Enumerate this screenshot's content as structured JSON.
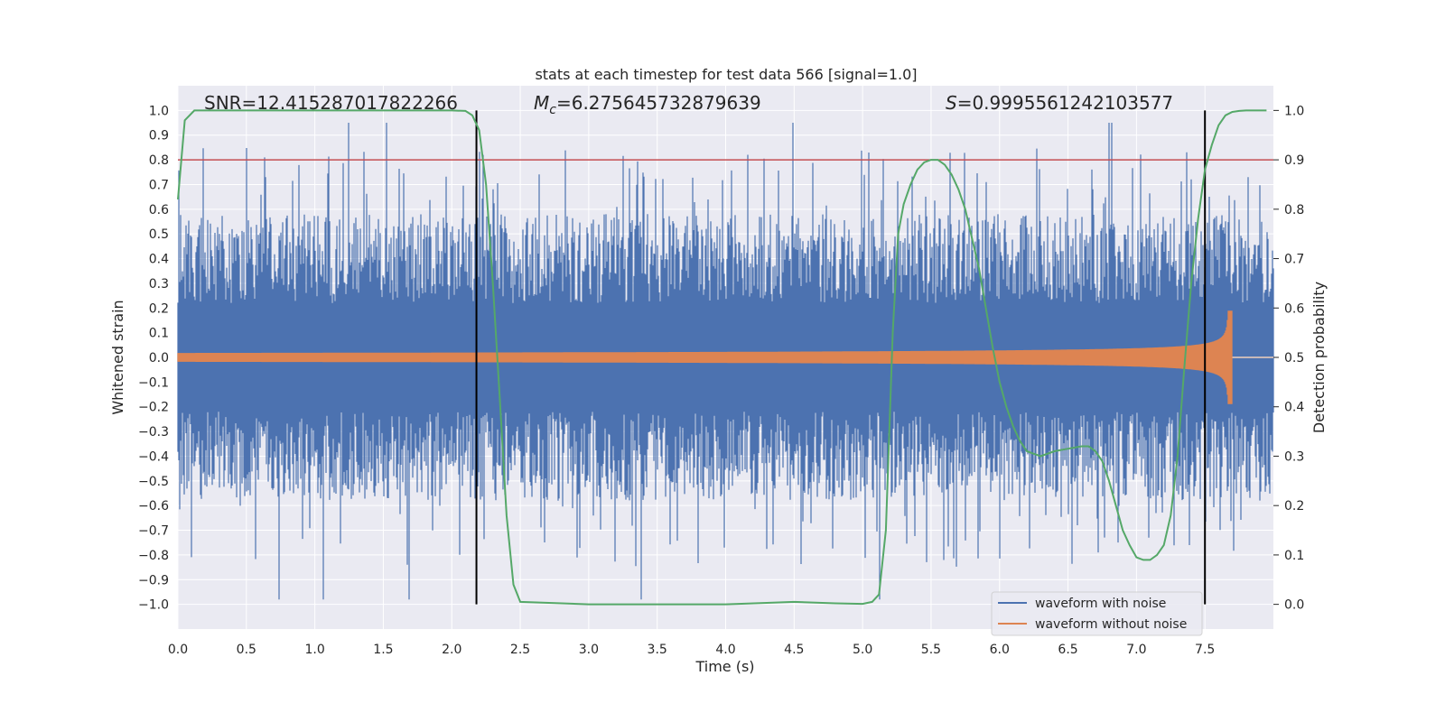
{
  "chart_data": {
    "type": "line",
    "title": "stats at each timestep for test data 566 [signal=1.0]",
    "xlabel": "Time (s)",
    "ylabel_left": "Whitened strain",
    "ylabel_right": "Detection probability",
    "xlim": [
      0.0,
      8.0
    ],
    "ylim_left": [
      -1.1,
      1.1
    ],
    "ylim_right": [
      -0.05,
      1.05
    ],
    "xticks": [
      "0.0",
      "0.5",
      "1.0",
      "1.5",
      "2.0",
      "2.5",
      "3.0",
      "3.5",
      "4.0",
      "4.5",
      "5.0",
      "5.5",
      "6.0",
      "6.5",
      "7.0",
      "7.5"
    ],
    "xtick_values": [
      0,
      0.5,
      1,
      1.5,
      2,
      2.5,
      3,
      3.5,
      4,
      4.5,
      5,
      5.5,
      6,
      6.5,
      7,
      7.5
    ],
    "yticks_left": [
      "1.0",
      "0.9",
      "0.8",
      "0.7",
      "0.6",
      "0.5",
      "0.4",
      "0.3",
      "0.2",
      "0.1",
      "0.0",
      "−0.1",
      "−0.2",
      "−0.3",
      "−0.4",
      "−0.5",
      "−0.6",
      "−0.7",
      "−0.8",
      "−0.9",
      "−1.0"
    ],
    "yticks_left_values": [
      1.0,
      0.9,
      0.8,
      0.7,
      0.6,
      0.5,
      0.4,
      0.3,
      0.2,
      0.1,
      0.0,
      -0.1,
      -0.2,
      -0.3,
      -0.4,
      -0.5,
      -0.6,
      -0.7,
      -0.8,
      -0.9,
      -1.0
    ],
    "yticks_right": [
      "1.0",
      "0.9",
      "0.8",
      "0.7",
      "0.6",
      "0.5",
      "0.4",
      "0.3",
      "0.2",
      "0.1",
      "0.0"
    ],
    "yticks_right_values": [
      1.0,
      0.9,
      0.8,
      0.7,
      0.6,
      0.5,
      0.4,
      0.3,
      0.2,
      0.1,
      0.0
    ],
    "annotations": {
      "snr": "SNR=12.415287017822266",
      "mc_symbol": "M",
      "mc_sub": "c",
      "mc_value": "=6.275645732879639",
      "s_symbol": "S",
      "s_value": "=0.9995561242103577"
    },
    "threshold_line": {
      "y": 0.8,
      "color": "#c44e52"
    },
    "vertical_markers": [
      2.18,
      7.5
    ],
    "noise_envelope": {
      "description": "waveform with noise spans roughly ±0.2 to ±0.6 with spikes up to ±1.0",
      "typical_amplitude": 0.5,
      "max_spike": 1.0
    },
    "clean_chirp": {
      "start_amplitude": 0.02,
      "peak_time": 7.67,
      "peak_amplitude": 0.3,
      "end_time": 7.7
    },
    "detection_probability": {
      "x": [
        0.0,
        0.05,
        0.12,
        0.2,
        0.5,
        1.0,
        1.5,
        2.0,
        2.1,
        2.15,
        2.2,
        2.25,
        2.3,
        2.35,
        2.4,
        2.45,
        2.5,
        3.0,
        3.5,
        4.0,
        4.3,
        4.5,
        4.8,
        5.0,
        5.07,
        5.12,
        5.17,
        5.22,
        5.26,
        5.3,
        5.35,
        5.4,
        5.45,
        5.5,
        5.55,
        5.6,
        5.65,
        5.7,
        5.75,
        5.8,
        5.85,
        5.9,
        5.95,
        6.0,
        6.05,
        6.1,
        6.15,
        6.2,
        6.3,
        6.4,
        6.5,
        6.6,
        6.65,
        6.7,
        6.75,
        6.8,
        6.85,
        6.9,
        6.95,
        7.0,
        7.05,
        7.1,
        7.15,
        7.2,
        7.25,
        7.3,
        7.35,
        7.4,
        7.45,
        7.5,
        7.55,
        7.6,
        7.65,
        7.7,
        7.75,
        7.8,
        7.85,
        7.9,
        7.95
      ],
      "y": [
        0.82,
        0.98,
        1.0,
        1.0,
        1.0,
        1.0,
        1.0,
        1.0,
        0.999,
        0.99,
        0.96,
        0.85,
        0.65,
        0.42,
        0.18,
        0.04,
        0.005,
        0.0,
        0.0,
        0.0,
        0.003,
        0.005,
        0.002,
        0.001,
        0.005,
        0.02,
        0.15,
        0.55,
        0.75,
        0.81,
        0.85,
        0.88,
        0.895,
        0.9,
        0.9,
        0.89,
        0.87,
        0.84,
        0.8,
        0.74,
        0.68,
        0.6,
        0.52,
        0.45,
        0.4,
        0.36,
        0.33,
        0.31,
        0.3,
        0.31,
        0.315,
        0.32,
        0.32,
        0.31,
        0.29,
        0.25,
        0.2,
        0.15,
        0.12,
        0.095,
        0.09,
        0.09,
        0.1,
        0.12,
        0.18,
        0.3,
        0.48,
        0.65,
        0.78,
        0.88,
        0.93,
        0.97,
        0.99,
        0.997,
        0.999,
        1.0,
        1.0,
        1.0,
        1.0
      ],
      "color": "#55a868"
    },
    "legend": {
      "location": "lower right",
      "entries": [
        {
          "label": "waveform with noise",
          "color": "#4c72b0"
        },
        {
          "label": "waveform without noise",
          "color": "#dd8452"
        }
      ]
    },
    "colors": {
      "plot_bg": "#eaeaf2",
      "grid": "#ffffff",
      "marker": "#000000",
      "noise": "#4c72b0",
      "clean": "#dd8452"
    }
  }
}
